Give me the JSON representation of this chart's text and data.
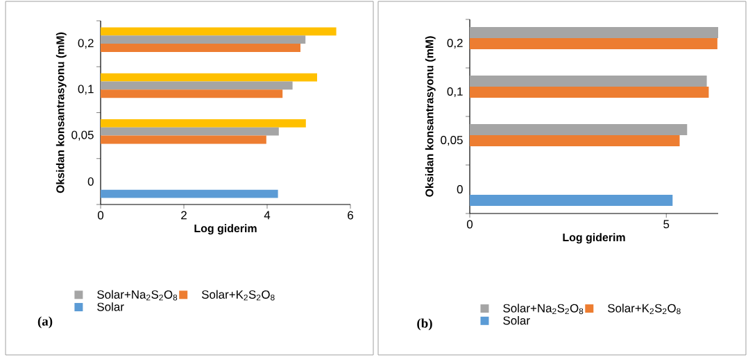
{
  "chart_data": [
    {
      "type": "bar",
      "orientation": "horizontal",
      "categories": [
        "0,2",
        "0,1",
        "0,05",
        "0"
      ],
      "series": [
        {
          "color": "#ffc000",
          "values": [
            5.66,
            5.2,
            4.93,
            null
          ]
        },
        {
          "name": "Solar+Na$_{2}$S$_{2}$O$_{8}$",
          "color": "#a5a5a5",
          "values": [
            4.92,
            4.61,
            4.28,
            null
          ]
        },
        {
          "name": "Solar+K$_{2}$S$_{2}$O$_{8}$",
          "color": "#ed7d31",
          "values": [
            4.8,
            4.37,
            3.98,
            null
          ]
        },
        {
          "name": "Solar",
          "color": "#5b9bd5",
          "values": [
            null,
            null,
            null,
            4.26
          ]
        }
      ],
      "xlim": [
        0,
        6
      ],
      "xticks": [
        0,
        2,
        4,
        6
      ],
      "xlabel": "Log giderim",
      "ylabel": "Oksidan konsantrasyonu (mM)",
      "legend": "bottom",
      "annotations": [
        "(a)"
      ]
    },
    {
      "type": "bar",
      "orientation": "horizontal",
      "categories": [
        "0,2",
        "0,1",
        "0,05",
        "0"
      ],
      "series": [
        {
          "name": "Solar+Na$_{2}$S$_{2}$O$_{8}$",
          "color": "#a5a5a5",
          "values": [
            6.32,
            6.03,
            5.53,
            null
          ]
        },
        {
          "name": "Solar+K$_{2}$S$_{2}$O$_{8}$",
          "color": "#ed7d31",
          "values": [
            6.3,
            6.08,
            5.34,
            null
          ]
        },
        {
          "name": "Solar",
          "color": "#5b9bd5",
          "values": [
            null,
            null,
            null,
            5.16
          ]
        }
      ],
      "xlim": [
        0,
        6.32
      ],
      "xticks": [
        0,
        5
      ],
      "xlabel": "Log giderim",
      "ylabel": "Oksidan konsantrasyonu (mM)",
      "legend": "bottom",
      "annotations": [
        "(b)"
      ]
    }
  ]
}
